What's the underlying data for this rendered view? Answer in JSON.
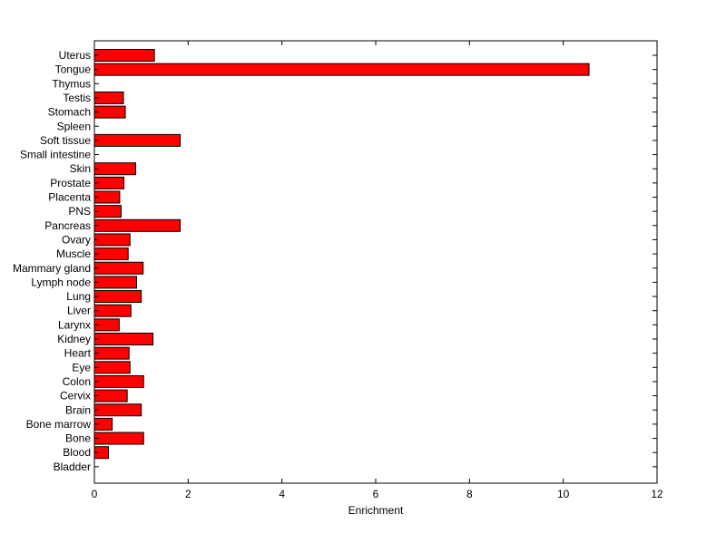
{
  "chart_data": {
    "type": "bar",
    "orientation": "horizontal",
    "title": "",
    "xlabel": "Enrichment",
    "ylabel": "",
    "xlim": [
      0,
      12
    ],
    "xticks": [
      0,
      2,
      4,
      6,
      8,
      10,
      12
    ],
    "grid": false,
    "bar_color": "#ff0000",
    "edge_color": "#000000",
    "categories": [
      "Uterus",
      "Tongue",
      "Thymus",
      "Testis",
      "Stomach",
      "Spleen",
      "Soft tissue",
      "Small intestine",
      "Skin",
      "Prostate",
      "Placenta",
      "PNS",
      "Pancreas",
      "Ovary",
      "Muscle",
      "Mammary gland",
      "Lymph node",
      "Lung",
      "Liver",
      "Larynx",
      "Kidney",
      "Heart",
      "Eye",
      "Colon",
      "Cervix",
      "Brain",
      "Bone marrow",
      "Bone",
      "Blood",
      "Bladder"
    ],
    "values": [
      1.28,
      10.55,
      0,
      0.62,
      0.66,
      0,
      1.83,
      0,
      0.88,
      0.63,
      0.54,
      0.57,
      1.83,
      0.76,
      0.72,
      1.04,
      0.9,
      1.0,
      0.78,
      0.53,
      1.25,
      0.74,
      0.76,
      1.05,
      0.7,
      1.0,
      0.38,
      1.05,
      0.3,
      0
    ]
  }
}
